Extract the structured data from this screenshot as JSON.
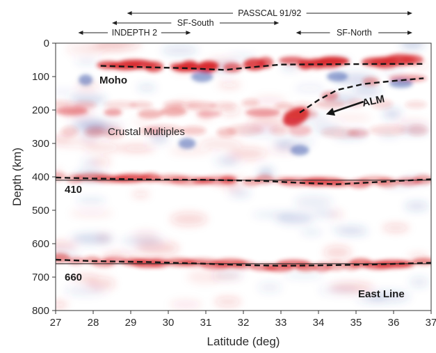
{
  "figure": {
    "y_axis": {
      "title": "Depth (km)",
      "range": [
        0,
        800
      ],
      "inverted": true,
      "ticks": [
        0,
        100,
        200,
        300,
        400,
        500,
        600,
        700,
        800
      ]
    },
    "x_axis": {
      "title": "Latitude (deg)",
      "range": [
        27,
        37
      ],
      "ticks": [
        27,
        28,
        29,
        30,
        31,
        32,
        33,
        34,
        35,
        36,
        37
      ]
    },
    "spans": [
      {
        "label": "PASSCAL 91/92",
        "from": 28.9,
        "to": 36.5
      },
      {
        "label": "SF-South",
        "from": 28.5,
        "to": 32.95
      },
      {
        "label": "INDEPTH 2",
        "from": 27.6,
        "to": 30.6
      },
      {
        "label": "SF-North",
        "from": 33.4,
        "to": 36.5
      }
    ],
    "labels": {
      "moho": "Moho",
      "alm": "ALM",
      "crustal_multiples": "Crustal Multiples",
      "d410": "410",
      "d660": "660",
      "east_line": "East Line"
    },
    "reference_lines": [
      {
        "depth": 410
      },
      {
        "depth": 660
      }
    ],
    "interpreted_interfaces": {
      "moho": [
        [
          28.2,
          68
        ],
        [
          29.5,
          72
        ],
        [
          30.5,
          75
        ],
        [
          31.5,
          80
        ],
        [
          32.2,
          72
        ],
        [
          33.0,
          64
        ],
        [
          34.5,
          63
        ],
        [
          36.0,
          62
        ],
        [
          36.8,
          62
        ]
      ],
      "alm": [
        [
          33.5,
          208
        ],
        [
          34.0,
          170
        ],
        [
          34.5,
          140
        ],
        [
          35.2,
          122
        ],
        [
          36.0,
          113
        ],
        [
          36.8,
          105
        ]
      ],
      "d410": [
        [
          27,
          402
        ],
        [
          28,
          405
        ],
        [
          29.5,
          408
        ],
        [
          31,
          409
        ],
        [
          32.5,
          412
        ],
        [
          33.5,
          418
        ],
        [
          34.5,
          422
        ],
        [
          35.5,
          416
        ],
        [
          36.5,
          410
        ],
        [
          37,
          407
        ]
      ],
      "d660": [
        [
          27,
          648
        ],
        [
          28,
          652
        ],
        [
          29.5,
          655
        ],
        [
          31,
          660
        ],
        [
          32,
          664
        ],
        [
          33,
          666
        ],
        [
          34,
          665
        ],
        [
          35.5,
          662
        ],
        [
          37,
          657
        ]
      ]
    },
    "alm_arrow": {
      "from": [
        35.2,
        175
      ],
      "to": [
        34.2,
        213
      ]
    },
    "colors": {
      "positive": "#d7262b",
      "negative": "#3350a8",
      "background": "#ffffff",
      "interface": "#151515",
      "reference": "#333333"
    }
  }
}
